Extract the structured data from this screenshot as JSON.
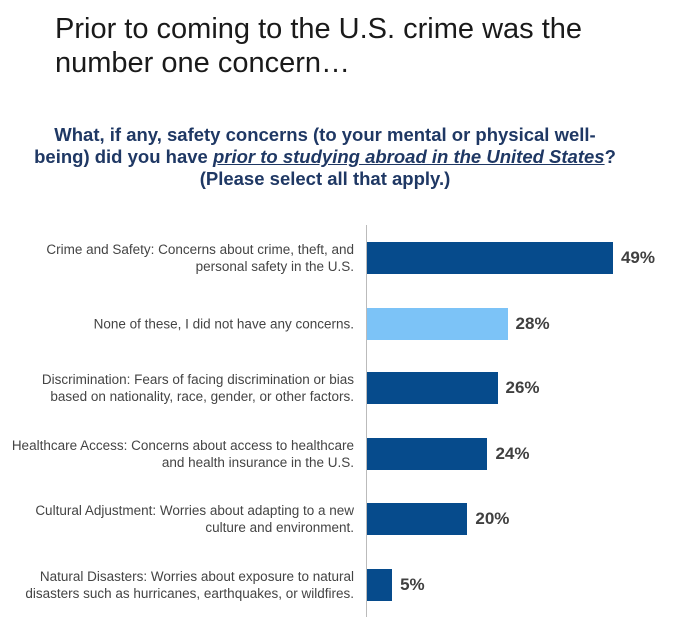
{
  "chart_data": {
    "type": "bar",
    "orientation": "horizontal",
    "title": "Prior to coming to the U.S. crime was the number one concern…",
    "subtitle": [
      "What, if any, safety concerns (to your mental or physical well-being) did you have ",
      "prior to studying abroad in the United States",
      "? (Please select all that apply.)"
    ],
    "categories": [
      "Crime and Safety: Concerns about crime, theft, and personal safety in the U.S.",
      "None of these, I did not have any concerns.",
      "Discrimination: Fears of facing discrimination or bias based on nationality, race, gender, or other factors.",
      "Healthcare Access: Concerns about access to healthcare and health insurance in the U.S.",
      "Cultural Adjustment: Worries about adapting to a new culture and environment.",
      "Natural Disasters: Worries about exposure to natural disasters such as hurricanes, earthquakes, or wildfires."
    ],
    "values": [
      49,
      28,
      26,
      24,
      20,
      5
    ],
    "value_labels": [
      "49%",
      "28%",
      "26%",
      "24%",
      "20%",
      "5%"
    ],
    "colors": [
      "#064B8C",
      "#7CC3F7",
      "#064B8C",
      "#064B8C",
      "#064B8C",
      "#064B8C"
    ]
  }
}
